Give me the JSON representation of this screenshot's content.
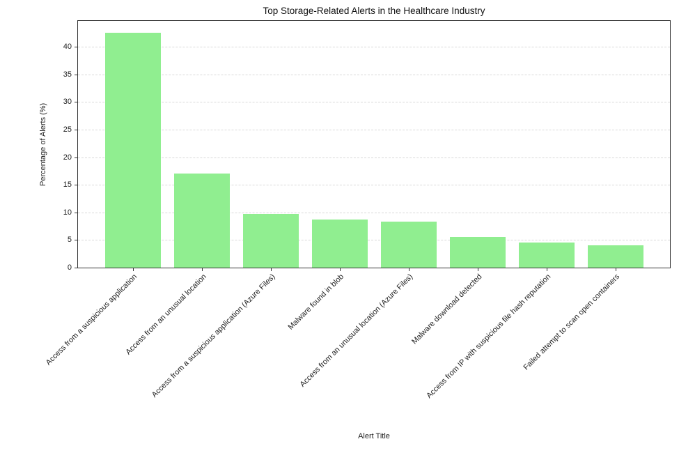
{
  "chart_data": {
    "type": "bar",
    "title": "Top Storage-Related Alerts in the Healthcare Industry",
    "xlabel": "Alert Title",
    "ylabel": "Percentage of Alerts (%)",
    "categories": [
      "Access from a suspicious application",
      "Access from an unusual location",
      "Access from a suspicious application (Azure Files)",
      "Malware found in blob",
      "Access from an unusual location (Azure Files)",
      "Malware download detected",
      "Access from IP with suspicious file hash reputation",
      "Failed attempt to scan open containers"
    ],
    "values": [
      42.5,
      17.0,
      9.7,
      8.7,
      8.3,
      5.5,
      4.6,
      4.1
    ],
    "yticks": [
      0,
      5,
      10,
      15,
      20,
      25,
      30,
      35,
      40
    ],
    "ylim": [
      0,
      44.7
    ],
    "bar_color": "#90ee90",
    "grid": {
      "axis": "y",
      "style": "dashed",
      "color": "#d8d8d8"
    },
    "legend": null,
    "xtick_rotation_deg": 45
  }
}
